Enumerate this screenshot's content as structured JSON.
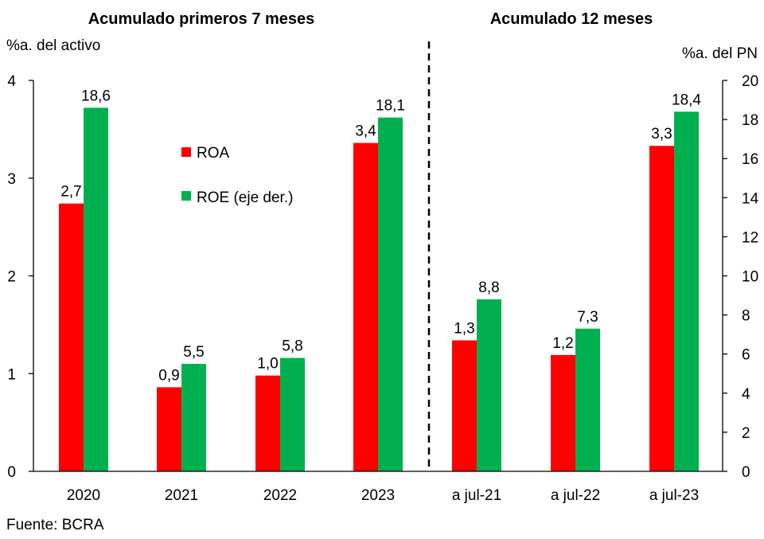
{
  "chart_data": {
    "type": "bar",
    "panels": [
      {
        "title": "Acumulado primeros 7 meses",
        "categories": [
          "2020",
          "2021",
          "2022",
          "2023"
        ]
      },
      {
        "title": "Acumulado 12 meses",
        "categories": [
          "a jul-21",
          "a jul-22",
          "a jul-23"
        ]
      }
    ],
    "categories": [
      "2020",
      "2021",
      "2022",
      "2023",
      "a jul-21",
      "a jul-22",
      "a jul-23"
    ],
    "series": [
      {
        "name": "ROA",
        "axis": "left",
        "color": "#ff0000",
        "values": [
          2.74,
          0.86,
          0.98,
          3.36,
          1.34,
          1.19,
          3.33
        ],
        "labels": [
          "2,7",
          "0,9",
          "1,0",
          "3,4",
          "1,3",
          "1,2",
          "3,3"
        ]
      },
      {
        "name": "ROE (eje der.)",
        "axis": "right",
        "color": "#00b050",
        "values": [
          18.6,
          5.5,
          5.8,
          18.1,
          8.8,
          7.3,
          18.4
        ],
        "labels": [
          "18,6",
          "5,5",
          "5,8",
          "18,1",
          "8,8",
          "7,3",
          "18,4"
        ]
      }
    ],
    "ylabel_left": "%a. del activo",
    "ylabel_right": "%a. del PN",
    "ylim_left": [
      0,
      4
    ],
    "ylim_right": [
      0,
      20
    ],
    "yticks_left": [
      "0",
      "1",
      "2",
      "3",
      "4"
    ],
    "yticks_right": [
      "0",
      "2",
      "4",
      "6",
      "8",
      "10",
      "12",
      "14",
      "16",
      "18",
      "20"
    ],
    "legend_position": "upper-left inside plot",
    "grid": false
  },
  "source": "Fuente: BCRA"
}
